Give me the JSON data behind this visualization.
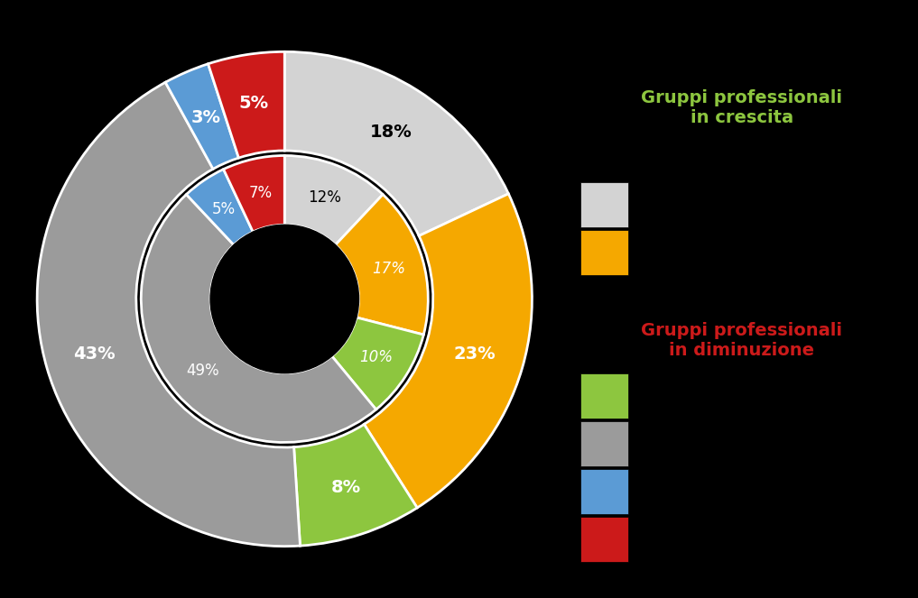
{
  "background_color": "#000000",
  "outer_ring": {
    "values": [
      18,
      23,
      8,
      43,
      3,
      5
    ],
    "colors": [
      "#d3d3d3",
      "#f5a800",
      "#8dc63f",
      "#9b9b9b",
      "#5b9bd5",
      "#cc1a1a"
    ],
    "labels": [
      "18%",
      "23%",
      "8%",
      "43%",
      "3%",
      "5%"
    ],
    "label_colors": [
      "#000000",
      "#ffffff",
      "#ffffff",
      "#ffffff",
      "#ffffff",
      "#ffffff"
    ]
  },
  "inner_ring": {
    "values": [
      12,
      17,
      10,
      49,
      5,
      7
    ],
    "colors": [
      "#d3d3d3",
      "#f5a800",
      "#8dc63f",
      "#9b9b9b",
      "#5b9bd5",
      "#cc1a1a"
    ],
    "labels": [
      "12%",
      "17%",
      "10%",
      "49%",
      "5%",
      "7%"
    ],
    "label_colors": [
      "#000000",
      "#ffffff",
      "#ffffff",
      "#ffffff",
      "#ffffff",
      "#ffffff"
    ],
    "label_italic": [
      false,
      true,
      true,
      false,
      false,
      false
    ]
  },
  "legend": {
    "crescita_title": "Gruppi professionali\nin crescita",
    "crescita_color": "#8dc63f",
    "crescita_squares": [
      "#d3d3d3",
      "#f5a800"
    ],
    "diminuzione_title": "Gruppi professionali\nin diminuzione",
    "diminuzione_color": "#cc1a1a",
    "diminuzione_squares": [
      "#8dc63f",
      "#9b9b9b",
      "#5b9bd5",
      "#cc1a1a"
    ]
  },
  "outer_outer_r": 1.0,
  "outer_inner_r": 0.6,
  "inner_outer_r": 0.58,
  "inner_inner_r": 0.3,
  "start_angle": 90.0
}
